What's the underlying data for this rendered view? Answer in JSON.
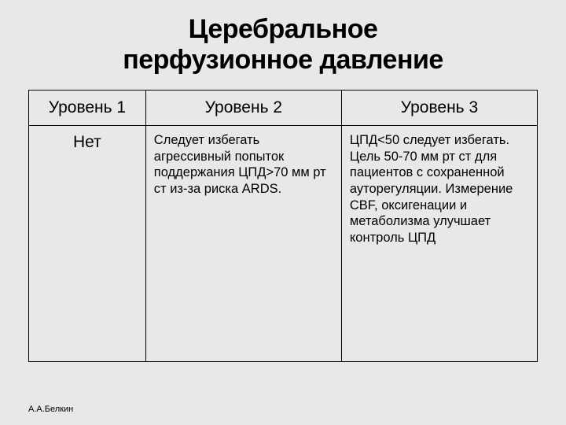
{
  "title_line1": "Церебральное",
  "title_line2": "перфузионное давление",
  "table": {
    "columns": [
      "Уровень 1",
      "Уровень 2",
      "Уровень 3"
    ],
    "rows": [
      [
        "Нет",
        "Следует избегать агрессивный попыток поддержания ЦПД>70 мм рт ст из-за риска ARDS.",
        "ЦПД<50 следует избегать. Цель 50-70 мм рт ст для пациентов с сохраненной ауторегуляции. Измерение CBF, оксигенации и метаболизма улучшает контроль ЦПД"
      ]
    ]
  },
  "footer": "А.А.Белкин"
}
